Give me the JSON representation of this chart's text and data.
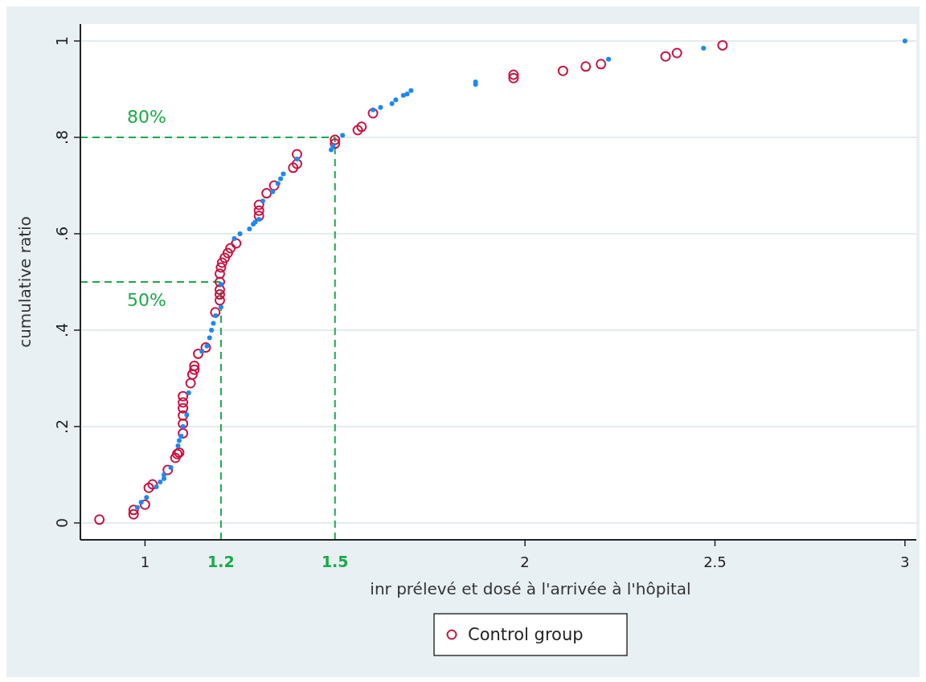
{
  "chart_data": {
    "type": "scatter",
    "xlabel": "inr prélevé et dosé à l'arrivée à l'hôpital",
    "ylabel": "cumulative ratio",
    "xlim": [
      0.83,
      3.03
    ],
    "ylim": [
      -0.035,
      1.035
    ],
    "xticks": [
      1,
      2,
      2.5,
      3
    ],
    "yticks": [
      {
        "value": 0,
        "label": "0"
      },
      {
        "value": 0.2,
        "label": ".2"
      },
      {
        "value": 0.4,
        "label": ".4"
      },
      {
        "value": 0.6,
        "label": ".6"
      },
      {
        "value": 0.8,
        "label": ".8"
      },
      {
        "value": 1,
        "label": "1"
      }
    ],
    "grid": "y",
    "legend": "bottom",
    "series": [
      {
        "name": "Control group",
        "color": "#c8103e",
        "marker": "circle",
        "x": [
          0.88,
          0.97,
          0.97,
          1.0,
          1.01,
          1.02,
          1.06,
          1.08,
          1.085,
          1.09,
          1.1,
          1.1,
          1.1,
          1.1,
          1.1,
          1.1,
          1.12,
          1.125,
          1.13,
          1.13,
          1.14,
          1.16,
          1.185,
          1.197,
          1.197,
          1.197,
          1.197,
          1.197,
          1.2,
          1.203,
          1.21,
          1.218,
          1.225,
          1.24,
          1.3,
          1.3,
          1.3,
          1.32,
          1.34,
          1.39,
          1.4,
          1.4,
          1.5,
          1.5,
          1.56,
          1.57,
          1.6,
          1.97,
          1.97,
          2.1,
          2.16,
          2.2,
          2.37,
          2.4,
          2.52
        ],
        "values": [
          0.007,
          0.018,
          0.027,
          0.038,
          0.073,
          0.08,
          0.11,
          0.135,
          0.143,
          0.146,
          0.186,
          0.206,
          0.223,
          0.238,
          0.25,
          0.263,
          0.29,
          0.308,
          0.318,
          0.326,
          0.351,
          0.364,
          0.437,
          0.462,
          0.474,
          0.484,
          0.5,
          0.517,
          0.53,
          0.54,
          0.55,
          0.56,
          0.57,
          0.58,
          0.637,
          0.648,
          0.66,
          0.684,
          0.7,
          0.737,
          0.745,
          0.765,
          0.787,
          0.795,
          0.815,
          0.822,
          0.85,
          0.923,
          0.93,
          0.938,
          0.947,
          0.952,
          0.968,
          0.975,
          0.991
        ]
      },
      {
        "color": "#1e88f0",
        "marker": "dot",
        "x": [
          0.98,
          0.99,
          1.004,
          1.03,
          1.04,
          1.05,
          1.05,
          1.068,
          1.087,
          1.09,
          1.095,
          1.1,
          1.11,
          1.115,
          1.15,
          1.163,
          1.17,
          1.175,
          1.18,
          1.186,
          1.2,
          1.2,
          1.235,
          1.25,
          1.275,
          1.285,
          1.29,
          1.3,
          1.31,
          1.336,
          1.35,
          1.357,
          1.364,
          1.4,
          1.49,
          1.495,
          1.52,
          1.6,
          1.62,
          1.65,
          1.66,
          1.68,
          1.69,
          1.7,
          1.87,
          1.87,
          2.22,
          2.47,
          3.0
        ],
        "values": [
          0.032,
          0.043,
          0.053,
          0.075,
          0.085,
          0.092,
          0.1,
          0.115,
          0.16,
          0.171,
          0.18,
          0.2,
          0.224,
          0.27,
          0.356,
          0.367,
          0.384,
          0.4,
          0.414,
          0.43,
          0.448,
          0.495,
          0.59,
          0.6,
          0.61,
          0.62,
          0.624,
          0.63,
          0.668,
          0.687,
          0.704,
          0.714,
          0.724,
          0.755,
          0.774,
          0.782,
          0.804,
          0.857,
          0.862,
          0.87,
          0.878,
          0.887,
          0.89,
          0.897,
          0.91,
          0.915,
          0.962,
          0.985,
          1.0
        ]
      }
    ],
    "ref_lines": [
      {
        "axis": "y",
        "value": 0.8,
        "label": "80%",
        "color": "#1aaa4a",
        "line_style": "dashed"
      },
      {
        "axis": "x",
        "value": 1.5,
        "label": "1.5",
        "color": "#1aaa4a",
        "line_style": "dashed"
      },
      {
        "axis": "y",
        "value": 0.5,
        "label": "50%",
        "color": "#1aaa4a",
        "line_style": "dashed"
      },
      {
        "axis": "x",
        "value": 1.2,
        "label": "1.2",
        "color": "#1aaa4a",
        "line_style": "dashed"
      }
    ]
  }
}
